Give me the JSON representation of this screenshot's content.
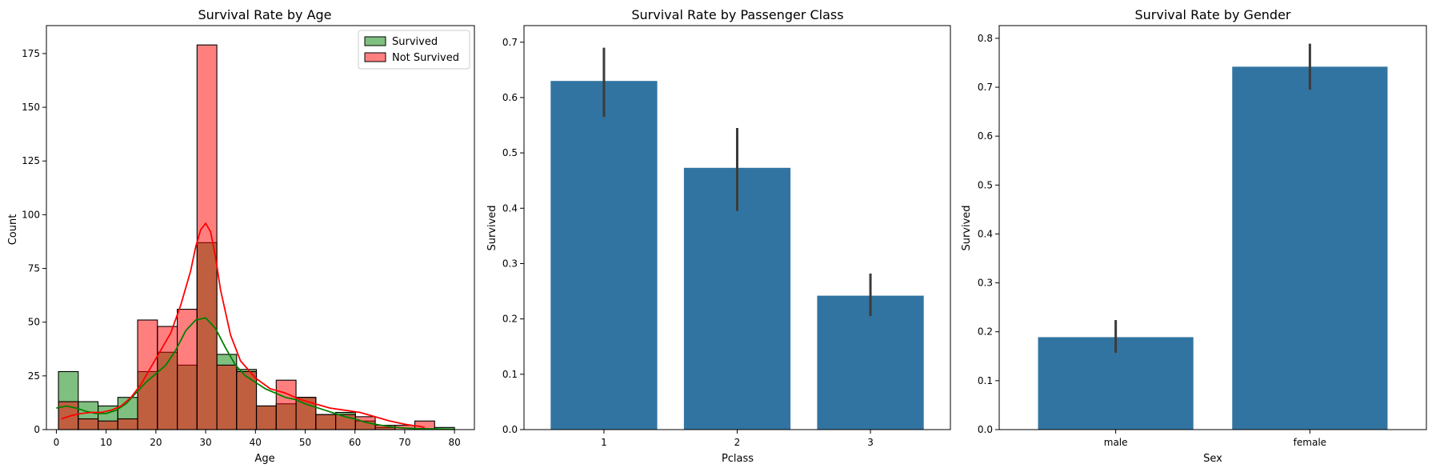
{
  "colors": {
    "survived": "#008000",
    "not_survived": "#ff0000",
    "bar": "#3274a1",
    "errorbar": "#3b3b3b"
  },
  "chart_data": [
    {
      "type": "histogram",
      "title": "Survival Rate by Age",
      "xlabel": "Age",
      "ylabel": "Count",
      "xlim": [
        -2,
        84
      ],
      "ylim": [
        0,
        188
      ],
      "xticks": [
        0,
        10,
        20,
        30,
        40,
        50,
        60,
        70,
        80
      ],
      "yticks": [
        0,
        25,
        50,
        75,
        100,
        125,
        150,
        175
      ],
      "legend": {
        "position": "top-right",
        "entries": [
          "Survived",
          "Not Survived"
        ]
      },
      "bins": [
        [
          0.42,
          4.4
        ],
        [
          4.4,
          8.38
        ],
        [
          8.38,
          12.35
        ],
        [
          12.35,
          16.33
        ],
        [
          16.33,
          20.31
        ],
        [
          20.31,
          24.29
        ],
        [
          24.29,
          28.27
        ],
        [
          28.27,
          32.25
        ],
        [
          32.25,
          36.22
        ],
        [
          36.22,
          40.2
        ],
        [
          40.2,
          44.18
        ],
        [
          44.18,
          48.16
        ],
        [
          48.16,
          52.14
        ],
        [
          52.14,
          56.12
        ],
        [
          56.12,
          60.1
        ],
        [
          60.1,
          64.07
        ],
        [
          64.07,
          68.05
        ],
        [
          68.05,
          72.03
        ],
        [
          72.03,
          76.01
        ],
        [
          76.01,
          80.0
        ]
      ],
      "series": [
        {
          "name": "Survived",
          "color": "#008000",
          "counts": [
            27,
            13,
            11,
            15,
            27,
            36,
            30,
            87,
            35,
            28,
            11,
            12,
            15,
            7,
            8,
            4,
            1,
            0,
            0,
            1
          ],
          "kde_x": [
            0,
            2,
            4,
            6,
            8,
            10,
            12,
            14,
            16,
            18,
            20,
            22,
            24,
            26,
            28,
            30,
            32,
            34,
            36,
            38,
            40,
            42,
            44,
            46,
            48,
            50,
            52,
            54,
            56,
            58,
            60,
            62,
            64,
            66,
            68,
            70,
            72,
            74,
            76,
            78,
            80
          ],
          "kde_y": [
            10,
            11,
            10,
            8.5,
            7.5,
            7.5,
            9,
            12,
            17,
            22,
            26,
            30,
            37,
            46,
            51,
            52,
            47,
            38,
            30,
            25,
            22,
            19,
            17,
            15,
            14,
            12,
            10.5,
            9,
            7.5,
            6,
            5,
            3.5,
            2.5,
            1.7,
            1.1,
            0.7,
            0.5,
            0.4,
            0.3,
            0.2,
            0.1
          ]
        },
        {
          "name": "Not Survived",
          "color": "#ff0000",
          "counts": [
            13,
            5,
            4,
            5,
            51,
            48,
            56,
            179,
            30,
            27,
            11,
            23,
            15,
            7,
            7,
            6,
            2,
            2,
            4,
            0
          ],
          "kde_x": [
            1,
            3,
            5,
            7,
            9,
            11,
            13,
            15,
            17,
            19,
            21,
            23,
            25,
            27,
            28,
            29,
            30,
            31,
            32,
            33,
            35,
            37,
            40,
            43,
            46,
            49,
            52,
            55,
            58,
            61,
            64,
            67,
            70,
            73,
            74
          ],
          "kde_y": [
            5,
            6.5,
            7.5,
            8,
            8,
            9,
            11,
            15,
            21,
            29,
            37,
            45,
            58,
            74,
            85,
            93,
            96,
            92,
            80,
            65,
            44,
            32,
            24,
            19,
            17,
            14,
            12,
            10,
            9,
            8,
            6,
            4,
            2.5,
            1.5,
            1
          ]
        }
      ]
    },
    {
      "type": "bar",
      "title": "Survival Rate by Passenger Class",
      "xlabel": "Pclass",
      "ylabel": "Survived",
      "categories": [
        "1",
        "2",
        "3"
      ],
      "values": [
        0.63,
        0.473,
        0.242
      ],
      "ci_low": [
        0.565,
        0.395,
        0.205
      ],
      "ci_high": [
        0.69,
        0.545,
        0.282
      ],
      "ylim": [
        0,
        0.73
      ],
      "yticks": [
        "0.0",
        "0.1",
        "0.2",
        "0.3",
        "0.4",
        "0.5",
        "0.6",
        "0.7"
      ]
    },
    {
      "type": "bar",
      "title": "Survival Rate by Gender",
      "xlabel": "Sex",
      "ylabel": "Survived",
      "categories": [
        "male",
        "female"
      ],
      "values": [
        0.189,
        0.742
      ],
      "ci_low": [
        0.157,
        0.695
      ],
      "ci_high": [
        0.224,
        0.789
      ],
      "ylim": [
        0,
        0.826
      ],
      "yticks": [
        "0.0",
        "0.1",
        "0.2",
        "0.3",
        "0.4",
        "0.5",
        "0.6",
        "0.7",
        "0.8"
      ]
    }
  ]
}
